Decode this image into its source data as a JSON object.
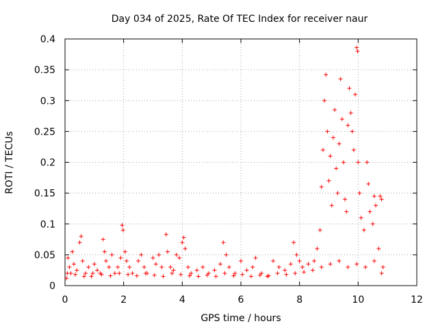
{
  "chart_data": {
    "type": "scatter",
    "title": "Day 034 of 2025, Rate Of TEC Index for receiver naur",
    "xlabel": "GPS time / hours",
    "ylabel": "ROTI / TECUs",
    "xlim": [
      0,
      12
    ],
    "ylim": [
      0,
      0.4
    ],
    "xticks": [
      0,
      2,
      4,
      6,
      8,
      10,
      12
    ],
    "yticks": [
      0,
      0.05,
      0.1,
      0.15,
      0.2,
      0.25,
      0.3,
      0.35,
      0.4
    ],
    "xtick_labels": [
      "0",
      "2",
      "4",
      "6",
      "8",
      "10",
      "12"
    ],
    "ytick_labels": [
      "0",
      "0.05",
      "0.1",
      "0.15",
      "0.2",
      "0.25",
      "0.3",
      "0.35",
      "0.4"
    ],
    "grid": true,
    "marker": "+",
    "color": "#ff0000",
    "series": [
      {
        "name": "ROTI",
        "points": [
          [
            0.05,
            0.012
          ],
          [
            0.1,
            0.045
          ],
          [
            0.15,
            0.03
          ],
          [
            0.2,
            0.02
          ],
          [
            0.25,
            0.055
          ],
          [
            0.3,
            0.035
          ],
          [
            0.4,
            0.025
          ],
          [
            0.5,
            0.07
          ],
          [
            0.55,
            0.08
          ],
          [
            0.6,
            0.04
          ],
          [
            0.7,
            0.02
          ],
          [
            0.8,
            0.03
          ],
          [
            0.9,
            0.015
          ],
          [
            1.0,
            0.035
          ],
          [
            1.1,
            0.025
          ],
          [
            1.2,
            0.02
          ],
          [
            1.3,
            0.075
          ],
          [
            1.35,
            0.055
          ],
          [
            1.4,
            0.04
          ],
          [
            1.5,
            0.03
          ],
          [
            1.6,
            0.05
          ],
          [
            1.7,
            0.02
          ],
          [
            1.8,
            0.03
          ],
          [
            1.9,
            0.045
          ],
          [
            1.95,
            0.098
          ],
          [
            1.98,
            0.09
          ],
          [
            2.05,
            0.055
          ],
          [
            2.1,
            0.04
          ],
          [
            2.2,
            0.03
          ],
          [
            2.3,
            0.02
          ],
          [
            2.5,
            0.04
          ],
          [
            2.6,
            0.05
          ],
          [
            2.7,
            0.03
          ],
          [
            2.8,
            0.02
          ],
          [
            3.0,
            0.045
          ],
          [
            3.1,
            0.035
          ],
          [
            3.2,
            0.05
          ],
          [
            3.3,
            0.03
          ],
          [
            3.45,
            0.083
          ],
          [
            3.5,
            0.055
          ],
          [
            3.6,
            0.03
          ],
          [
            3.7,
            0.025
          ],
          [
            3.8,
            0.05
          ],
          [
            3.9,
            0.045
          ],
          [
            4.0,
            0.07
          ],
          [
            4.05,
            0.078
          ],
          [
            4.1,
            0.06
          ],
          [
            4.2,
            0.03
          ],
          [
            4.3,
            0.02
          ],
          [
            4.5,
            0.025
          ],
          [
            4.7,
            0.03
          ],
          [
            4.9,
            0.02
          ],
          [
            5.1,
            0.025
          ],
          [
            5.3,
            0.035
          ],
          [
            5.4,
            0.07
          ],
          [
            5.5,
            0.05
          ],
          [
            5.6,
            0.03
          ],
          [
            5.8,
            0.02
          ],
          [
            6.0,
            0.04
          ],
          [
            6.2,
            0.025
          ],
          [
            6.4,
            0.03
          ],
          [
            6.5,
            0.045
          ],
          [
            6.7,
            0.02
          ],
          [
            6.9,
            0.015
          ],
          [
            7.1,
            0.04
          ],
          [
            7.3,
            0.03
          ],
          [
            7.5,
            0.025
          ],
          [
            7.7,
            0.035
          ],
          [
            7.8,
            0.07
          ],
          [
            7.9,
            0.05
          ],
          [
            8.0,
            0.04
          ],
          [
            8.1,
            0.03
          ],
          [
            8.3,
            0.035
          ],
          [
            8.5,
            0.04
          ],
          [
            8.6,
            0.06
          ],
          [
            8.7,
            0.09
          ],
          [
            8.75,
            0.16
          ],
          [
            8.8,
            0.22
          ],
          [
            8.85,
            0.3
          ],
          [
            8.9,
            0.342
          ],
          [
            8.95,
            0.25
          ],
          [
            9.0,
            0.17
          ],
          [
            9.05,
            0.21
          ],
          [
            9.1,
            0.13
          ],
          [
            9.15,
            0.24
          ],
          [
            9.2,
            0.285
          ],
          [
            9.25,
            0.19
          ],
          [
            9.3,
            0.15
          ],
          [
            9.35,
            0.23
          ],
          [
            9.4,
            0.335
          ],
          [
            9.45,
            0.27
          ],
          [
            9.5,
            0.2
          ],
          [
            9.55,
            0.14
          ],
          [
            9.6,
            0.12
          ],
          [
            9.65,
            0.26
          ],
          [
            9.7,
            0.32
          ],
          [
            9.75,
            0.28
          ],
          [
            9.8,
            0.25
          ],
          [
            9.85,
            0.22
          ],
          [
            9.9,
            0.31
          ],
          [
            9.95,
            0.386
          ],
          [
            9.98,
            0.38
          ],
          [
            10.0,
            0.2
          ],
          [
            10.05,
            0.15
          ],
          [
            10.1,
            0.11
          ],
          [
            10.2,
            0.09
          ],
          [
            10.3,
            0.2
          ],
          [
            10.35,
            0.165
          ],
          [
            10.4,
            0.12
          ],
          [
            10.5,
            0.1
          ],
          [
            10.55,
            0.145
          ],
          [
            10.6,
            0.13
          ],
          [
            10.7,
            0.06
          ],
          [
            10.75,
            0.145
          ],
          [
            10.8,
            0.14
          ],
          [
            10.85,
            0.03
          ],
          [
            0.08,
            0.02
          ],
          [
            0.35,
            0.018
          ],
          [
            0.65,
            0.015
          ],
          [
            0.95,
            0.02
          ],
          [
            1.25,
            0.018
          ],
          [
            1.55,
            0.016
          ],
          [
            1.85,
            0.02
          ],
          [
            2.15,
            0.018
          ],
          [
            2.45,
            0.016
          ],
          [
            2.75,
            0.02
          ],
          [
            3.05,
            0.017
          ],
          [
            3.35,
            0.015
          ],
          [
            3.65,
            0.02
          ],
          [
            3.95,
            0.018
          ],
          [
            4.25,
            0.016
          ],
          [
            4.55,
            0.015
          ],
          [
            4.85,
            0.017
          ],
          [
            5.15,
            0.015
          ],
          [
            5.45,
            0.02
          ],
          [
            5.75,
            0.016
          ],
          [
            6.05,
            0.018
          ],
          [
            6.35,
            0.015
          ],
          [
            6.65,
            0.017
          ],
          [
            6.95,
            0.016
          ],
          [
            7.25,
            0.02
          ],
          [
            7.55,
            0.018
          ],
          [
            7.85,
            0.02
          ],
          [
            8.15,
            0.022
          ],
          [
            8.45,
            0.025
          ],
          [
            8.75,
            0.03
          ],
          [
            9.05,
            0.035
          ],
          [
            9.35,
            0.04
          ],
          [
            9.65,
            0.03
          ],
          [
            9.95,
            0.035
          ],
          [
            10.25,
            0.03
          ],
          [
            10.55,
            0.04
          ],
          [
            10.8,
            0.02
          ]
        ]
      }
    ]
  }
}
